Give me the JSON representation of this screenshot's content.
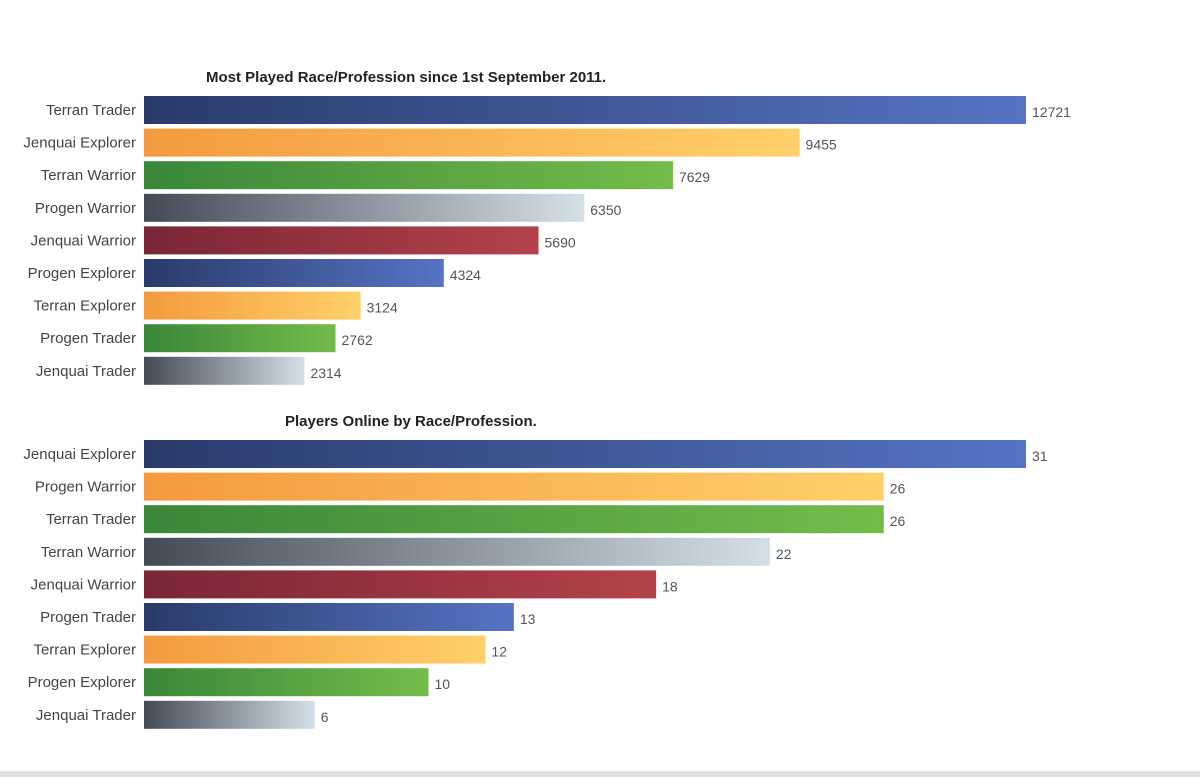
{
  "chart_data": [
    {
      "type": "bar",
      "orientation": "horizontal",
      "title": "Most Played Race/Profession since 1st September 2011.",
      "categories": [
        "Terran Trader",
        "Jenquai Explorer",
        "Terran Warrior",
        "Progen Warrior",
        "Jenquai Warrior",
        "Progen Explorer",
        "Terran Explorer",
        "Progen Trader",
        "Jenquai Trader"
      ],
      "values": [
        12721,
        9455,
        7629,
        6350,
        5690,
        4324,
        3124,
        2762,
        2314
      ],
      "xlim": [
        0,
        12721
      ],
      "grid": false,
      "data_labels": true
    },
    {
      "type": "bar",
      "orientation": "horizontal",
      "title": "Players Online by Race/Profession.",
      "categories": [
        "Jenquai Explorer",
        "Progen Warrior",
        "Terran Trader",
        "Terran Warrior",
        "Jenquai Warrior",
        "Progen Trader",
        "Terran Explorer",
        "Progen Explorer",
        "Jenquai Trader"
      ],
      "values": [
        31,
        26,
        26,
        22,
        18,
        13,
        12,
        10,
        6
      ],
      "xlim": [
        0,
        31
      ],
      "grid": false,
      "data_labels": true
    }
  ],
  "colors": {
    "bar_cycle": [
      [
        "#2a3b6a",
        "#5674c4"
      ],
      [
        "#f39a3e",
        "#ffd06a"
      ],
      [
        "#3a873a",
        "#74bc4a"
      ],
      [
        "#444b56",
        "#d4e0e8"
      ],
      [
        "#792636",
        "#b5424a"
      ]
    ]
  }
}
